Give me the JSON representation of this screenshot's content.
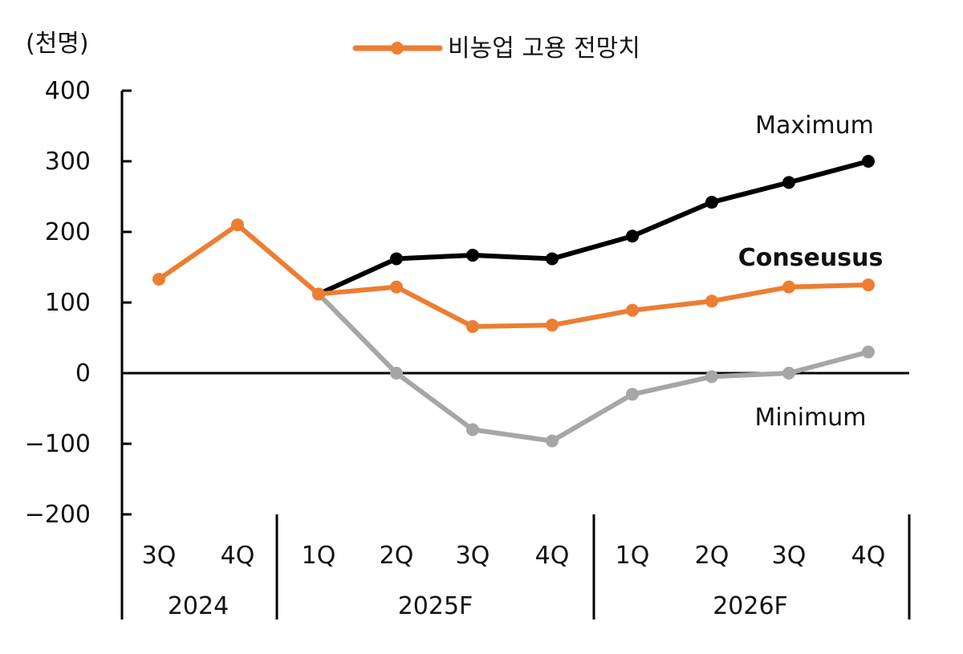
{
  "chart_data": {
    "type": "line",
    "unit_label": "(천명)",
    "legend": [
      {
        "label": "비농업 고용 전망치",
        "color": "#ED7D31"
      }
    ],
    "ylim": [
      -200,
      400
    ],
    "yticks": [
      400,
      300,
      200,
      100,
      0,
      -100,
      -200
    ],
    "ytick_labels": [
      "400",
      "300",
      "200",
      "100",
      "0",
      "−100",
      "−200"
    ],
    "categories": [
      "3Q",
      "4Q",
      "1Q",
      "2Q",
      "3Q",
      "4Q",
      "1Q",
      "2Q",
      "3Q",
      "4Q"
    ],
    "groups": [
      {
        "label": "2024",
        "span": [
          0,
          1
        ]
      },
      {
        "label": "2025F",
        "span": [
          2,
          5
        ]
      },
      {
        "label": "2026F",
        "span": [
          6,
          9
        ]
      }
    ],
    "series": [
      {
        "name": "Maximum",
        "color": "#000000",
        "values": [
          null,
          null,
          112,
          162,
          167,
          162,
          194,
          242,
          270,
          300
        ]
      },
      {
        "name": "Minimum",
        "color": "#A6A6A6",
        "values": [
          null,
          null,
          112,
          0,
          -80,
          -96,
          -30,
          -5,
          0,
          30
        ]
      },
      {
        "name": "Conseusus",
        "color": "#ED7D31",
        "values": [
          133,
          210,
          112,
          122,
          66,
          68,
          89,
          102,
          122,
          125
        ]
      }
    ],
    "annotations": [
      {
        "text": "Maximum",
        "series": "Maximum"
      },
      {
        "text": "Conseusus",
        "series": "Conseusus"
      },
      {
        "text": "Minimum",
        "series": "Minimum"
      }
    ]
  }
}
